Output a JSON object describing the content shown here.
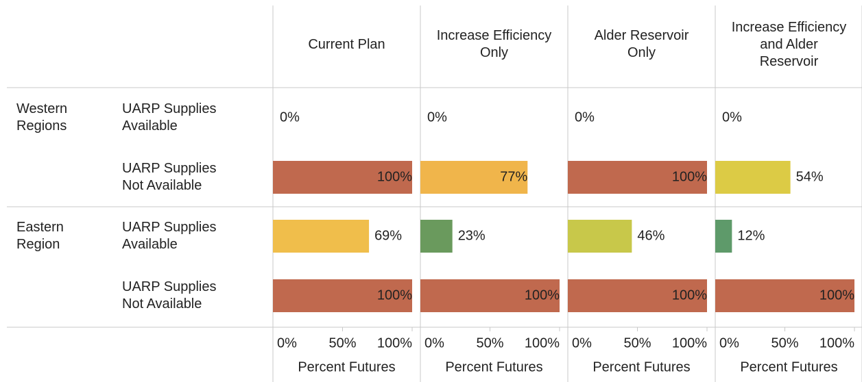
{
  "chart_data": {
    "type": "bar",
    "regions": [
      {
        "name": "Western Regions",
        "rows": [
          "UARP Supplies Available",
          "UARP Supplies Not Available"
        ]
      },
      {
        "name": "Eastern Region",
        "rows": [
          "UARP Supplies Available",
          "UARP Supplies Not Available"
        ]
      }
    ],
    "series": [
      {
        "name": "Current Plan",
        "values": [
          0,
          100,
          69,
          100
        ],
        "value_labels": [
          "0%",
          "100%",
          "69%",
          "100%"
        ],
        "colors": [
          "#c0694e",
          "#c0694e",
          "#f0be4b",
          "#c0694e"
        ]
      },
      {
        "name": "Increase Efficiency Only",
        "values": [
          0,
          77,
          23,
          100
        ],
        "value_labels": [
          "0%",
          "77%",
          "23%",
          "100%"
        ],
        "colors": [
          "#c0694e",
          "#f0b54b",
          "#6a9a5d",
          "#c0694e"
        ]
      },
      {
        "name": "Alder Reservoir Only",
        "values": [
          0,
          100,
          46,
          100
        ],
        "value_labels": [
          "0%",
          "100%",
          "46%",
          "100%"
        ],
        "colors": [
          "#c0694e",
          "#c0694e",
          "#c8c84a",
          "#c0694e"
        ]
      },
      {
        "name": "Increase Efficiency and Alder Reservoir",
        "values": [
          0,
          54,
          12,
          100
        ],
        "value_labels": [
          "0%",
          "54%",
          "12%",
          "100%"
        ],
        "colors": [
          "#c0694e",
          "#dccb45",
          "#5e9a6a",
          "#c0694e"
        ]
      }
    ],
    "x_label": "Percent Futures",
    "xlim": [
      0,
      100
    ],
    "xticks": [
      {
        "value": 0,
        "label": "0%"
      },
      {
        "value": 50,
        "label": "50%"
      },
      {
        "value": 100,
        "label": "100%"
      }
    ]
  }
}
